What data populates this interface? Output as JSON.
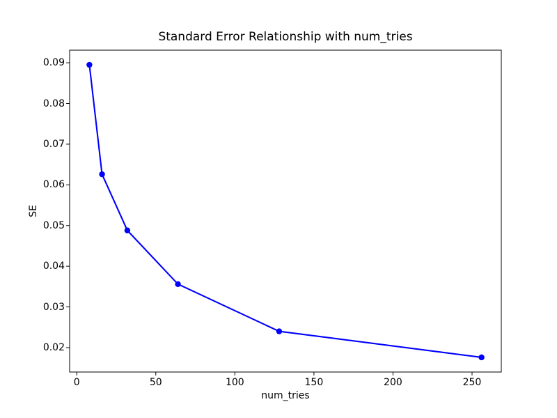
{
  "figure": {
    "background": "#ffffff",
    "frame_color": "#000000",
    "text_color": "#000000"
  },
  "chart_data": {
    "type": "line",
    "title": "Standard Error Relationship with num_tries",
    "xlabel": "num_tries",
    "ylabel": "SE",
    "series": [
      {
        "name": "SE",
        "x": [
          8,
          16,
          32,
          64,
          128,
          256
        ],
        "y": [
          0.0895,
          0.0626,
          0.0488,
          0.0356,
          0.024,
          0.0176
        ],
        "line_color": "#0000ff",
        "marker": "o",
        "marker_color": "#0000ff"
      }
    ],
    "xlim": [
      -4.5,
      268.5
    ],
    "ylim": [
      0.014,
      0.0931
    ],
    "xticks": [
      0,
      50,
      100,
      150,
      200,
      250
    ],
    "yticks": [
      0.02,
      0.03,
      0.04,
      0.05,
      0.06,
      0.07,
      0.08,
      0.09
    ],
    "ytick_decimals": 2,
    "grid": false,
    "legend_position": "none"
  }
}
